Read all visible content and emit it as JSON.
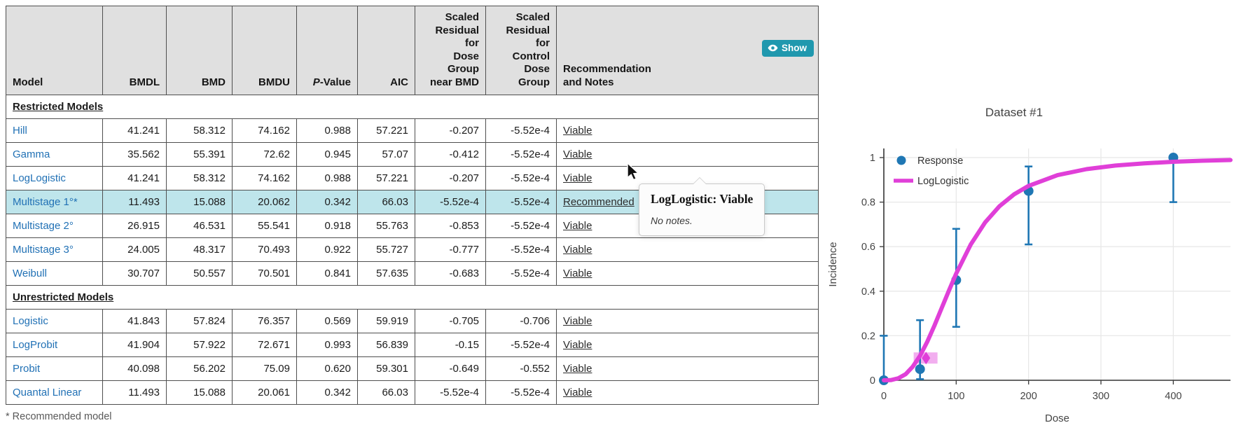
{
  "colors": {
    "link": "#2171b5",
    "highlight_row": "#bee5eb",
    "show_button": "#2098ae",
    "response_series": "#1f77b4",
    "model_curve": "#e03fd8",
    "header_bg": "#e0e0e0"
  },
  "table": {
    "columns": [
      "Model",
      "BMDL",
      "BMD",
      "BMDU",
      "P-Value",
      "AIC",
      "Scaled\nResidual for\nDose Group\nnear BMD",
      "Scaled\nResidual for\nControl Dose\nGroup",
      "Recommendation\nand Notes"
    ],
    "show_button_label": "Show",
    "sections": [
      {
        "label": "Restricted Models",
        "rows": [
          {
            "model": "Hill",
            "bmdl": "41.241",
            "bmd": "58.312",
            "bmdu": "74.162",
            "pvalue": "0.988",
            "aic": "57.221",
            "residual_near_bmd": "-0.207",
            "residual_control": "-5.52e-4",
            "recommendation": "Viable",
            "highlighted": false
          },
          {
            "model": "Gamma",
            "bmdl": "35.562",
            "bmd": "55.391",
            "bmdu": "72.62",
            "pvalue": "0.945",
            "aic": "57.07",
            "residual_near_bmd": "-0.412",
            "residual_control": "-5.52e-4",
            "recommendation": "Viable",
            "highlighted": false
          },
          {
            "model": "LogLogistic",
            "bmdl": "41.241",
            "bmd": "58.312",
            "bmdu": "74.162",
            "pvalue": "0.988",
            "aic": "57.221",
            "residual_near_bmd": "-0.207",
            "residual_control": "-5.52e-4",
            "recommendation": "Viable",
            "highlighted": false
          },
          {
            "model": "Multistage 1°*",
            "bmdl": "11.493",
            "bmd": "15.088",
            "bmdu": "20.062",
            "pvalue": "0.342",
            "aic": "66.03",
            "residual_near_bmd": "-5.52e-4",
            "residual_control": "-5.52e-4",
            "recommendation": "Recommended",
            "highlighted": true
          },
          {
            "model": "Multistage 2°",
            "bmdl": "26.915",
            "bmd": "46.531",
            "bmdu": "55.541",
            "pvalue": "0.918",
            "aic": "55.763",
            "residual_near_bmd": "-0.853",
            "residual_control": "-5.52e-4",
            "recommendation": "Viable",
            "highlighted": false
          },
          {
            "model": "Multistage 3°",
            "bmdl": "24.005",
            "bmd": "48.317",
            "bmdu": "70.493",
            "pvalue": "0.922",
            "aic": "55.727",
            "residual_near_bmd": "-0.777",
            "residual_control": "-5.52e-4",
            "recommendation": "Viable",
            "highlighted": false
          },
          {
            "model": "Weibull",
            "bmdl": "30.707",
            "bmd": "50.557",
            "bmdu": "70.501",
            "pvalue": "0.841",
            "aic": "57.635",
            "residual_near_bmd": "-0.683",
            "residual_control": "-5.52e-4",
            "recommendation": "Viable",
            "highlighted": false
          }
        ]
      },
      {
        "label": "Unrestricted Models",
        "rows": [
          {
            "model": "Logistic",
            "bmdl": "41.843",
            "bmd": "57.824",
            "bmdu": "76.357",
            "pvalue": "0.569",
            "aic": "59.919",
            "residual_near_bmd": "-0.705",
            "residual_control": "-0.706",
            "recommendation": "Viable",
            "highlighted": false
          },
          {
            "model": "LogProbit",
            "bmdl": "41.904",
            "bmd": "57.922",
            "bmdu": "72.671",
            "pvalue": "0.993",
            "aic": "56.839",
            "residual_near_bmd": "-0.15",
            "residual_control": "-5.52e-4",
            "recommendation": "Viable",
            "highlighted": false
          },
          {
            "model": "Probit",
            "bmdl": "40.098",
            "bmd": "56.202",
            "bmdu": "75.09",
            "pvalue": "0.620",
            "aic": "59.301",
            "residual_near_bmd": "-0.649",
            "residual_control": "-0.552",
            "recommendation": "Viable",
            "highlighted": false
          },
          {
            "model": "Quantal Linear",
            "bmdl": "11.493",
            "bmd": "15.088",
            "bmdu": "20.061",
            "pvalue": "0.342",
            "aic": "66.03",
            "residual_near_bmd": "-5.52e-4",
            "residual_control": "-5.52e-4",
            "recommendation": "Viable",
            "highlighted": false
          }
        ]
      }
    ],
    "footnote": "* Recommended model"
  },
  "tooltip": {
    "title": "LogLogistic: Viable",
    "body": "No notes."
  },
  "chart_data": {
    "type": "scatter",
    "title": "Dataset #1",
    "xlabel": "Dose",
    "ylabel": "Incidence",
    "xticks": [
      0,
      100,
      200,
      300,
      400
    ],
    "yticks": [
      0,
      0.2,
      0.4,
      0.6,
      0.8,
      1
    ],
    "xlim": [
      0,
      479
    ],
    "ylim": [
      0,
      1.05
    ],
    "grid": true,
    "legend_position": "top-left-inside",
    "series": [
      {
        "name": "Response",
        "type": "scatter",
        "color": "#1f77b4",
        "x": [
          0,
          50,
          100,
          200,
          400
        ],
        "y": [
          0,
          0.05,
          0.45,
          0.85,
          1.0
        ],
        "ci_lower": [
          0,
          0.005,
          0.24,
          0.61,
          0.8
        ],
        "ci_upper": [
          0.2,
          0.27,
          0.68,
          0.96,
          1.0
        ]
      },
      {
        "name": "LogLogistic",
        "type": "line",
        "color": "#e03fd8",
        "x": [
          0,
          10,
          20,
          30,
          40,
          50,
          60,
          70,
          80,
          90,
          100,
          120,
          140,
          160,
          180,
          200,
          240,
          280,
          320,
          360,
          400,
          440,
          479
        ],
        "y": [
          0,
          0.001,
          0.009,
          0.027,
          0.061,
          0.11,
          0.173,
          0.246,
          0.325,
          0.403,
          0.479,
          0.609,
          0.709,
          0.782,
          0.835,
          0.873,
          0.921,
          0.948,
          0.964,
          0.974,
          0.981,
          0.986,
          0.989
        ]
      }
    ],
    "bmd_marker": {
      "bmd": 58.312,
      "bmdl": 41.241,
      "bmdu": 74.162,
      "response": 0.1,
      "color": "#e03fd8"
    }
  }
}
